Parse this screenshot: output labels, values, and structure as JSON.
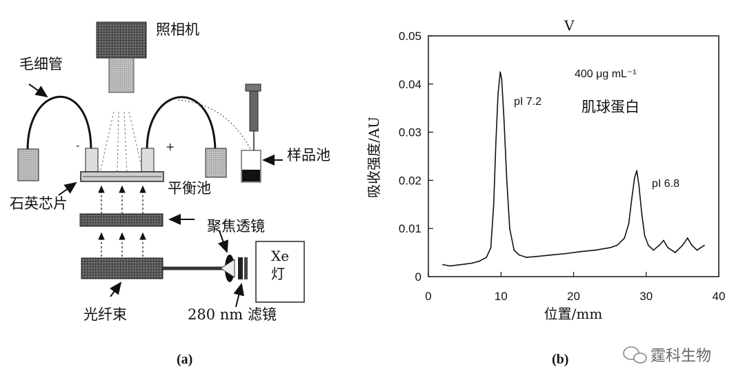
{
  "figure_a": {
    "caption": "(a)",
    "labels": {
      "camera": "照相机",
      "capillary": "毛细管",
      "sample_cell": "样品池",
      "quartz_chip": "石英芯片",
      "balance_cell": "平衡池",
      "focus_lens": "聚焦透镜",
      "fiber_bundle": "光纤束",
      "filter": "280 nm 滤镜",
      "lamp_top": "Xe",
      "lamp_bottom": "灯",
      "minus": "-",
      "plus": "+"
    }
  },
  "figure_b": {
    "caption": "(b)",
    "top_mark": "V",
    "annotations": {
      "concentration": "400 μg mL⁻¹",
      "protein": "肌球蛋白",
      "peak1": "pI 7.2",
      "peak2": "pI 6.8"
    }
  },
  "watermark": "霆科生物",
  "chart_data": {
    "type": "line",
    "xlabel": "位置/mm",
    "ylabel": "吸收强度/AU",
    "xlim": [
      0,
      40
    ],
    "ylim": [
      0,
      0.05
    ],
    "xticks": [
      0,
      10,
      20,
      30,
      40
    ],
    "yticks": [
      0,
      0.01,
      0.02,
      0.03,
      0.04,
      0.05
    ],
    "ytick_labels": [
      "0",
      "0.01",
      "0.02",
      "0.03",
      "0.04",
      "0.05"
    ],
    "series": [
      {
        "x": [
          2,
          3,
          4,
          5,
          6,
          7,
          8,
          8.6,
          9,
          9.3,
          9.6,
          9.9,
          10.1,
          10.4,
          10.8,
          11.2,
          11.8,
          12.5,
          13.5,
          15,
          17,
          19,
          21,
          23,
          25,
          26,
          27,
          27.6,
          28,
          28.4,
          28.7,
          29,
          29.4,
          29.8,
          30.3,
          31,
          31.8,
          32.4,
          33,
          34,
          35,
          35.7,
          36.3,
          37,
          38
        ],
        "y": [
          0.0025,
          0.0022,
          0.0024,
          0.0026,
          0.0028,
          0.0032,
          0.004,
          0.006,
          0.015,
          0.028,
          0.038,
          0.0425,
          0.041,
          0.033,
          0.02,
          0.01,
          0.0055,
          0.0045,
          0.004,
          0.0042,
          0.0045,
          0.0048,
          0.0052,
          0.0055,
          0.006,
          0.0065,
          0.008,
          0.011,
          0.016,
          0.0205,
          0.022,
          0.019,
          0.013,
          0.0085,
          0.0065,
          0.0055,
          0.0065,
          0.0075,
          0.006,
          0.005,
          0.0065,
          0.008,
          0.0065,
          0.0055,
          0.0065
        ]
      }
    ],
    "grid": false
  }
}
